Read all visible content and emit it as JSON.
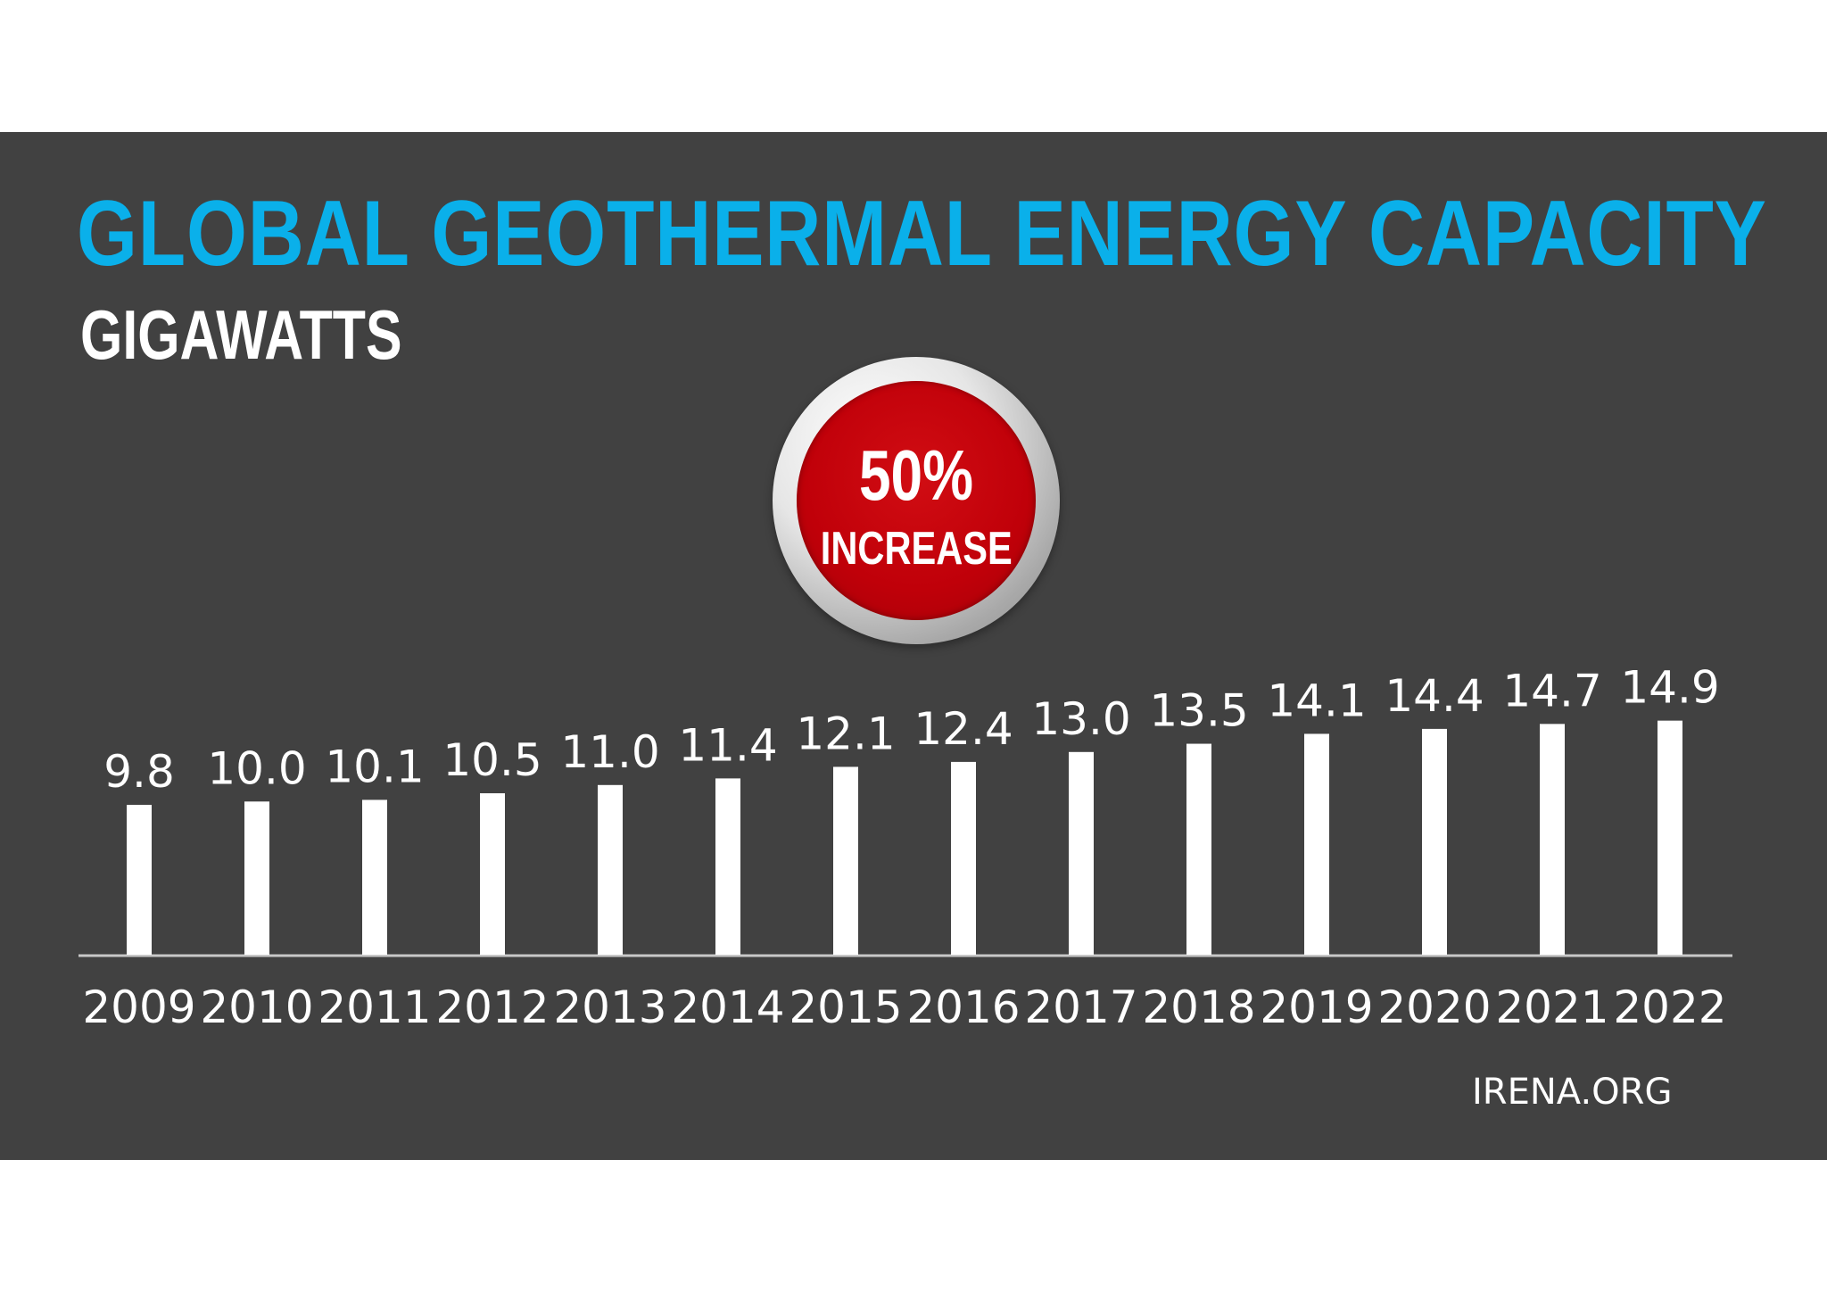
{
  "chart_data": {
    "type": "bar",
    "title": "GLOBAL GEOTHERMAL ENERGY CAPACITY",
    "subtitle": "GIGAWATTS",
    "categories": [
      "2009",
      "2010",
      "2011",
      "2012",
      "2013",
      "2014",
      "2015",
      "2016",
      "2017",
      "2018",
      "2019",
      "2020",
      "2021",
      "2022"
    ],
    "values": [
      9.8,
      10.0,
      10.1,
      10.5,
      11.0,
      11.4,
      12.1,
      12.4,
      13.0,
      13.5,
      14.1,
      14.4,
      14.7,
      14.9
    ],
    "value_labels": [
      "9.8",
      "10.0",
      "10.1",
      "10.5",
      "11.0",
      "11.4",
      "12.1",
      "12.4",
      "13.0",
      "13.5",
      "14.1",
      "14.4",
      "14.7",
      "14.9"
    ],
    "ylim": [
      0,
      14.9
    ],
    "grid": false,
    "bar_color": "#ffffff",
    "title_color": "#0ab0ea",
    "background_color": "#414141"
  },
  "badge": {
    "percent": "50%",
    "label": "INCREASE",
    "color": "#c00009"
  },
  "source": "IRENA.ORG"
}
